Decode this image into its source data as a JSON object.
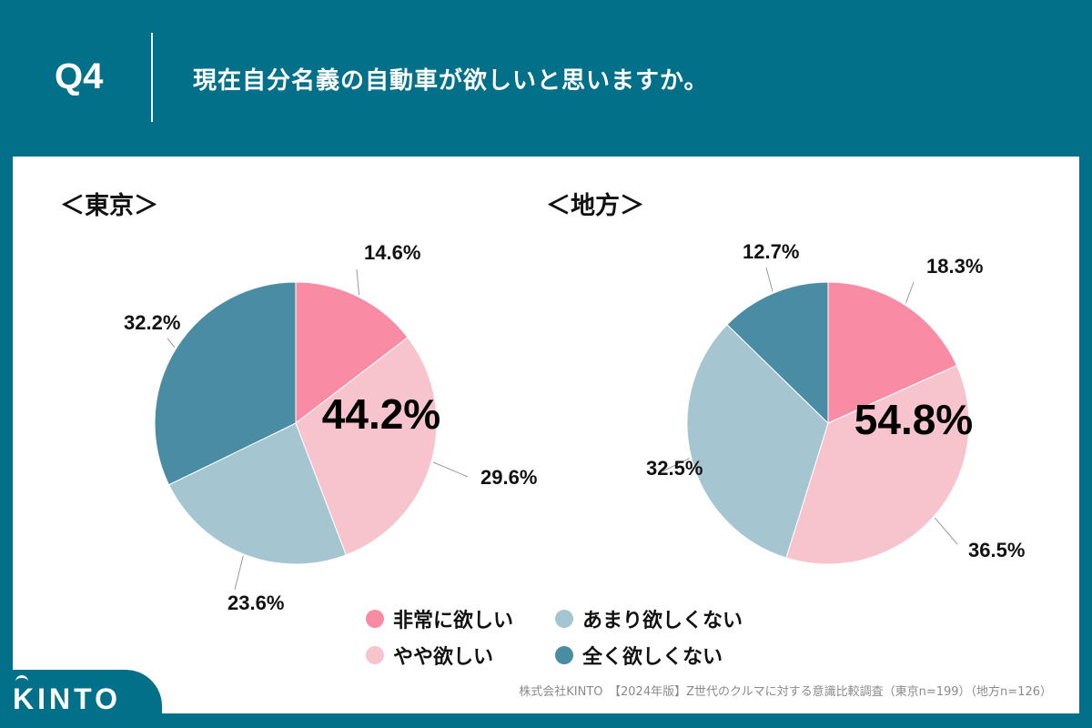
{
  "header": {
    "question_number": "Q4",
    "question_text": "現在自分名義の自動車が欲しいと思いますか。"
  },
  "footer": {
    "source": "株式会社KINTO　【2024年版】Z世代のクルマに対する意識比較調査（東京n=199）（地方n=126）",
    "logo": "KINTO"
  },
  "legend": [
    {
      "label": "非常に欲しい",
      "color": "#f98ca4"
    },
    {
      "label": "あまり欲しくない",
      "color": "#a5c6d0"
    },
    {
      "label": "やや欲しい",
      "color": "#f7c4ce"
    },
    {
      "label": "全く欲しくない",
      "color": "#4a8ca4"
    }
  ],
  "chart_data": [
    {
      "type": "pie",
      "title": "＜東京＞",
      "center_label": "44.2%",
      "categories": [
        "非常に欲しい",
        "やや欲しい",
        "あまり欲しくない",
        "全く欲しくない"
      ],
      "values": [
        14.6,
        29.6,
        23.6,
        32.2
      ],
      "labels": [
        "14.6%",
        "29.6%",
        "23.6%",
        "32.2%"
      ],
      "colors": [
        "#f98ca4",
        "#f7c4ce",
        "#a5c6d0",
        "#4a8ca4"
      ]
    },
    {
      "type": "pie",
      "title": "＜地方＞",
      "center_label": "54.8%",
      "categories": [
        "非常に欲しい",
        "やや欲しい",
        "あまり欲しくない",
        "全く欲しくない"
      ],
      "values": [
        18.3,
        36.5,
        32.5,
        12.7
      ],
      "labels": [
        "18.3%",
        "36.5%",
        "32.5%",
        "12.7%"
      ],
      "colors": [
        "#f98ca4",
        "#f7c4ce",
        "#a5c6d0",
        "#4a8ca4"
      ]
    }
  ]
}
